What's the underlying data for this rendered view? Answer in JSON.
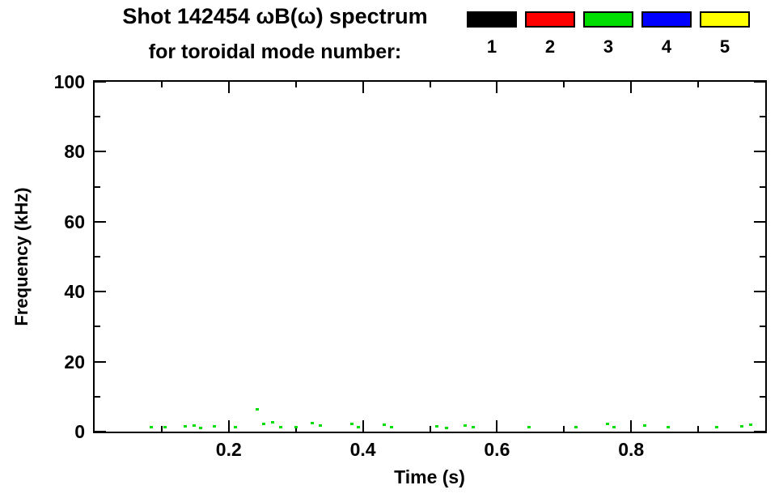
{
  "chart_data": {
    "type": "scatter",
    "title": "Shot 142454 ωB(ω) spectrum",
    "subtitle": "for toroidal mode number:",
    "xlabel": "Time (s)",
    "ylabel": "Frequency (kHz)",
    "xlim": [
      0,
      1.0
    ],
    "ylim": [
      0,
      100
    ],
    "grid": false,
    "x_major_ticks": [
      0.2,
      0.4,
      0.6,
      0.8
    ],
    "x_tick_labels": [
      "0.2",
      "0.4",
      "0.6",
      "0.8"
    ],
    "x_minor_ticks": [
      0.1,
      0.3,
      0.5,
      0.7,
      0.9
    ],
    "y_major_ticks": [
      0,
      20,
      40,
      60,
      80,
      100
    ],
    "y_tick_labels": [
      "0",
      "20",
      "40",
      "60",
      "80",
      "100"
    ],
    "y_minor_ticks": [
      10,
      30,
      50,
      70,
      90
    ],
    "legend": {
      "position": "top-right",
      "entries": [
        {
          "label": "1",
          "color": "#000000"
        },
        {
          "label": "2",
          "color": "#ff0000"
        },
        {
          "label": "3",
          "color": "#00dd00"
        },
        {
          "label": "4",
          "color": "#0000ff"
        },
        {
          "label": "5",
          "color": "#ffff00"
        }
      ]
    },
    "series": [
      {
        "name": "toroidal mode 1",
        "color": "#000000",
        "points": []
      },
      {
        "name": "toroidal mode 2",
        "color": "#ff0000",
        "points": []
      },
      {
        "name": "toroidal mode 3",
        "color": "#00dd00",
        "points": [
          [
            0.085,
            1.5
          ],
          [
            0.105,
            1.3
          ],
          [
            0.135,
            1.6
          ],
          [
            0.148,
            1.9
          ],
          [
            0.158,
            1.2
          ],
          [
            0.178,
            1.6
          ],
          [
            0.21,
            1.3
          ],
          [
            0.243,
            6.5
          ],
          [
            0.252,
            2.2
          ],
          [
            0.265,
            2.8
          ],
          [
            0.277,
            1.5
          ],
          [
            0.3,
            1.3
          ],
          [
            0.325,
            2.6
          ],
          [
            0.337,
            1.9
          ],
          [
            0.383,
            2.3
          ],
          [
            0.393,
            1.4
          ],
          [
            0.432,
            2.1
          ],
          [
            0.443,
            1.3
          ],
          [
            0.51,
            1.6
          ],
          [
            0.525,
            1.2
          ],
          [
            0.553,
            1.9
          ],
          [
            0.565,
            1.3
          ],
          [
            0.648,
            1.3
          ],
          [
            0.718,
            1.4
          ],
          [
            0.765,
            2.4
          ],
          [
            0.775,
            1.4
          ],
          [
            0.82,
            1.9
          ],
          [
            0.855,
            1.4
          ],
          [
            0.928,
            1.3
          ],
          [
            0.965,
            1.6
          ],
          [
            0.978,
            2.1
          ]
        ]
      },
      {
        "name": "toroidal mode 4",
        "color": "#0000ff",
        "points": []
      },
      {
        "name": "toroidal mode 5",
        "color": "#ffff00",
        "points": []
      }
    ]
  }
}
